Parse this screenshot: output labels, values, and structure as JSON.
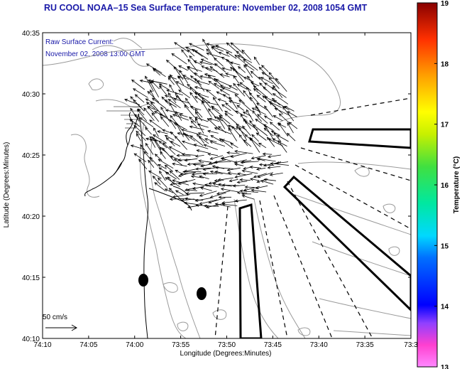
{
  "title": "RU COOL  NOAA–15  Sea Surface Temperature:  November 02, 2008 1054 GMT",
  "overlay": {
    "line1": "Raw Surface Current:",
    "line2": "November 02, 2008 13:00 GMT"
  },
  "axes": {
    "xlabel": "Longitude (Degrees:Minutes)",
    "ylabel": "Latitude (Degrees:Minutes)",
    "xticks": [
      "74:10",
      "74:05",
      "74:00",
      "73:55",
      "73:50",
      "73:45",
      "73:40",
      "73:35",
      "73:3"
    ],
    "yticks": [
      "40:35",
      "40:30",
      "40:25",
      "40:20",
      "40:15",
      "40:10"
    ]
  },
  "scale": {
    "label": "50 cm/s"
  },
  "colorbar": {
    "label": "Temperature (°C)",
    "ticks": [
      "19",
      "18",
      "17",
      "16",
      "15",
      "14",
      "13"
    ],
    "min": 13,
    "max": 19
  },
  "colors": {
    "title": "#1a1aa8",
    "contour": "#9a9a9a",
    "land": "#000000"
  }
}
